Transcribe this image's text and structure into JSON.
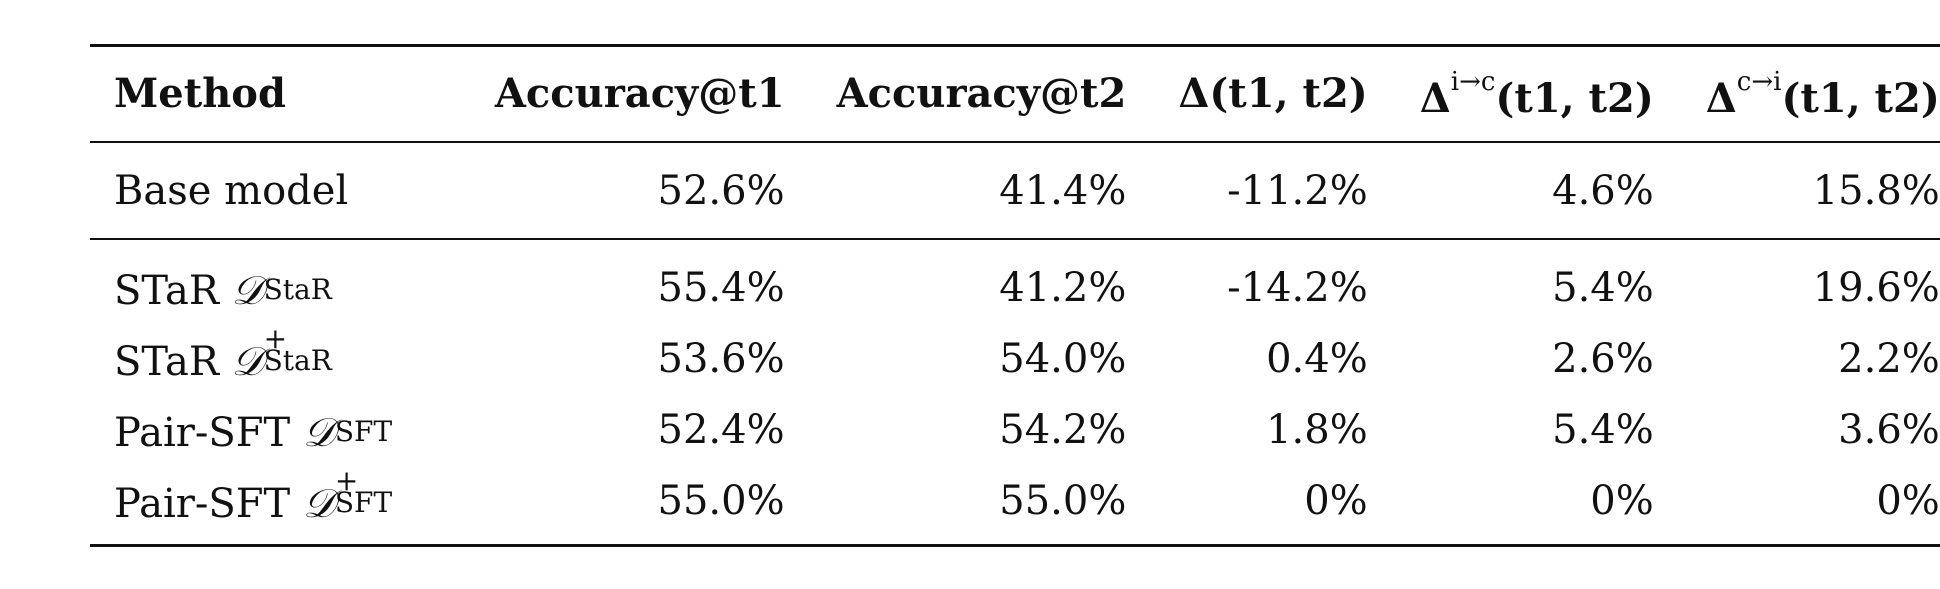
{
  "table": {
    "headers": {
      "method": "Method",
      "acc_t1": "Accuracy@t1",
      "acc_t2": "Accuracy@t2",
      "delta": "Δ(t1, t2)",
      "delta_ic_sym": "Δ",
      "delta_ic_sup": "i→c",
      "delta_ic_tail": "(t1, t2)",
      "delta_ci_sym": "Δ",
      "delta_ci_sup": "c→i",
      "delta_ci_tail": "(t1, t2)"
    },
    "base_row": {
      "method": "Base model",
      "acc_t1": "52.6%",
      "acc_t2": "41.4%",
      "delta": "-11.2%",
      "delta_ic": "4.6%",
      "delta_ci": "15.8%"
    },
    "rows": [
      {
        "method_name": "STaR",
        "dataset_symbol": "𝒟",
        "dataset_sup": "",
        "dataset_sub": "StaR",
        "acc_t1": "55.4%",
        "acc_t2": "41.2%",
        "delta": "-14.2%",
        "delta_ic": "5.4%",
        "delta_ci": "19.6%"
      },
      {
        "method_name": "STaR",
        "dataset_symbol": "𝒟",
        "dataset_sup": "+",
        "dataset_sub": "StaR",
        "acc_t1": "53.6%",
        "acc_t2": "54.0%",
        "delta": "0.4%",
        "delta_ic": "2.6%",
        "delta_ci": "2.2%"
      },
      {
        "method_name": "Pair-SFT",
        "dataset_symbol": "𝒟",
        "dataset_sup": "",
        "dataset_sub": "SFT",
        "acc_t1": "52.4%",
        "acc_t2": "54.2%",
        "delta": "1.8%",
        "delta_ic": "5.4%",
        "delta_ci": "3.6%"
      },
      {
        "method_name": "Pair-SFT",
        "dataset_symbol": "𝒟",
        "dataset_sup": "+",
        "dataset_sub": "SFT",
        "acc_t1": "55.0%",
        "acc_t2": "55.0%",
        "delta": "0%",
        "delta_ic": "0%",
        "delta_ci": "0%"
      }
    ]
  }
}
